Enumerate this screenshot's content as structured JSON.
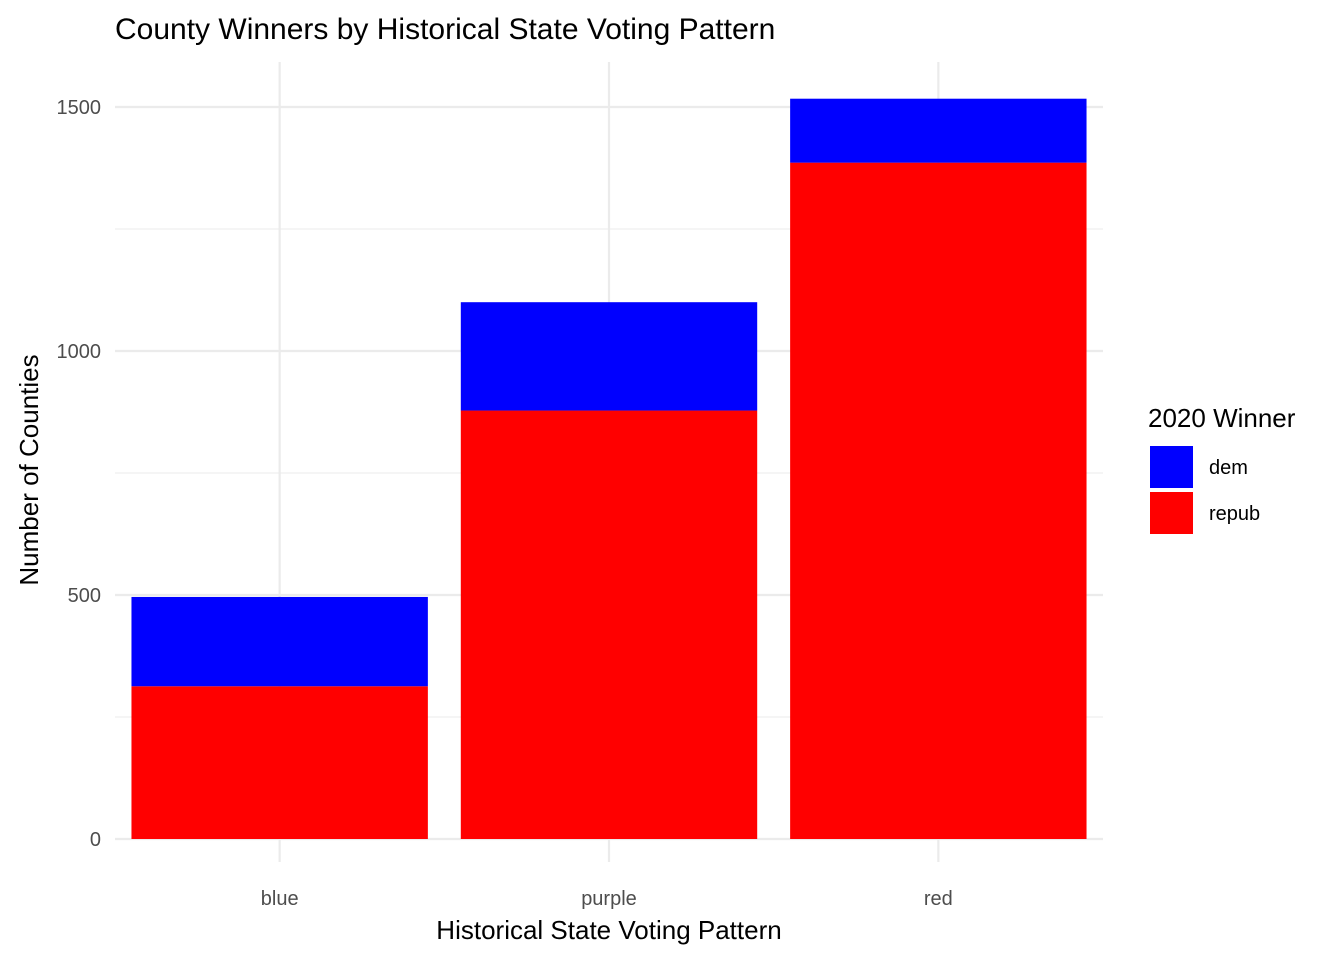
{
  "chart_data": {
    "type": "bar",
    "stacked": true,
    "title": "County Winners by Historical State Voting Pattern",
    "xlabel": "Historical State Voting Pattern",
    "ylabel": "Number of Counties",
    "categories": [
      "blue",
      "purple",
      "red"
    ],
    "series": [
      {
        "name": "repub",
        "color": "#ff0000",
        "values": [
          313,
          878,
          1386
        ]
      },
      {
        "name": "dem",
        "color": "#0000ff",
        "values": [
          183,
          222,
          131
        ]
      }
    ],
    "legend": {
      "title": "2020 Winner",
      "entries": [
        "dem",
        "repub"
      ],
      "position": "right"
    },
    "ylim": [
      0,
      1600
    ],
    "y_ticks": [
      0,
      500,
      1000,
      1500
    ],
    "grid": true
  }
}
